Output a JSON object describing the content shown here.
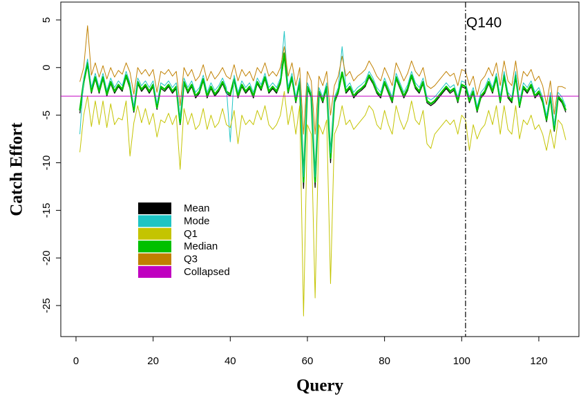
{
  "chart_data": {
    "type": "line",
    "xlabel": "Query",
    "ylabel": "Catch Effort",
    "xlim": [
      -3.94,
      130.4
    ],
    "ylim": [
      -28.26,
      6.88
    ],
    "xticks": [
      0,
      20,
      40,
      60,
      80,
      100,
      120
    ],
    "yticks": [
      5,
      0,
      -5,
      -10,
      -15,
      -20,
      -25
    ],
    "x": [
      1,
      2,
      3,
      4,
      5,
      6,
      7,
      8,
      9,
      10,
      11,
      12,
      13,
      14,
      15,
      16,
      17,
      18,
      19,
      20,
      21,
      22,
      23,
      24,
      25,
      26,
      27,
      28,
      29,
      30,
      31,
      32,
      33,
      34,
      35,
      36,
      37,
      38,
      39,
      40,
      41,
      42,
      43,
      44,
      45,
      46,
      47,
      48,
      49,
      50,
      51,
      52,
      53,
      54,
      55,
      56,
      57,
      58,
      59,
      60,
      61,
      62,
      63,
      64,
      65,
      66,
      67,
      68,
      69,
      70,
      71,
      72,
      73,
      74,
      75,
      76,
      77,
      78,
      79,
      80,
      81,
      82,
      83,
      84,
      85,
      86,
      87,
      88,
      89,
      90,
      91,
      92,
      93,
      94,
      95,
      96,
      97,
      98,
      99,
      100,
      101,
      102,
      103,
      104,
      105,
      106,
      107,
      108,
      109,
      110,
      111,
      112,
      113,
      114,
      115,
      116,
      117,
      118,
      119,
      120,
      121,
      122,
      123,
      124,
      125,
      126,
      127
    ],
    "series": [
      {
        "name": "Mean",
        "color": "#000000",
        "line_width": 1.2,
        "values": [
          -4.8,
          -1.7,
          0.3,
          -2.7,
          -1.2,
          -2.7,
          -1.2,
          -3,
          -1.7,
          -2.7,
          -2,
          -2.5,
          -1,
          -2.2,
          -4.7,
          -1.7,
          -2.5,
          -2,
          -2.7,
          -2,
          -4.4,
          -2.2,
          -2.5,
          -2,
          -2.7,
          -2.2,
          -6,
          -1.7,
          -2.7,
          -2,
          -3.2,
          -2.7,
          -1.4,
          -3.2,
          -2.2,
          -3,
          -2.5,
          -1.7,
          -2.7,
          -3,
          -1.4,
          -3.2,
          -2,
          -2.7,
          -2.2,
          -3.2,
          -1.7,
          -2.4,
          -1.2,
          -2.7,
          -2.2,
          -2.7,
          -1.7,
          1.2,
          -2.7,
          -1.2,
          -3.7,
          -1.7,
          -12.7,
          -2.2,
          -3.2,
          -12.6,
          -2.7,
          -3.7,
          -2.2,
          -10,
          -3.7,
          -2.7,
          -0.7,
          -2.7,
          -2.2,
          -3.2,
          -2.7,
          -2.4,
          -2,
          -1,
          -1.7,
          -2.7,
          -3.2,
          -1.7,
          -2.7,
          -3.7,
          -1.2,
          -2.2,
          -3.2,
          -2.4,
          -1,
          -2.2,
          -2.7,
          -1.7,
          -3.7,
          -4,
          -3.7,
          -3.2,
          -2.7,
          -2.2,
          -2.7,
          -2.4,
          -3.7,
          -2,
          -2.2,
          -3.7,
          -2.7,
          -4.7,
          -3.2,
          -2.7,
          -1.7,
          -2.7,
          -1.2,
          -3.7,
          -1,
          -3.2,
          -3.7,
          -1,
          -4.2,
          -2.2,
          -2.7,
          -2,
          -3.2,
          -2.7,
          -3.7,
          -5.7,
          -3.2,
          -6.7,
          -3.2,
          -3.7,
          -4.7
        ]
      },
      {
        "name": "Mode",
        "color": "#1ec4c4",
        "line_width": 1,
        "values": [
          -7,
          -1.1,
          0.9,
          -2.1,
          -0.6,
          -2.1,
          -0.6,
          -2.4,
          -1.1,
          -2.1,
          -1.4,
          -1.9,
          -0.4,
          -1.6,
          -4.1,
          -1.1,
          -1.9,
          -1.4,
          -2.1,
          -1.4,
          -3.8,
          -1.6,
          -1.9,
          -1.4,
          -2.1,
          -1.6,
          -5.4,
          -1.1,
          -2.1,
          -1.4,
          -2.6,
          -2.1,
          -0.8,
          -2.6,
          -1.6,
          -2.4,
          -1.9,
          -1.1,
          -2.1,
          -7.8,
          -0.8,
          -2.6,
          -1.4,
          -2.1,
          -1.6,
          -2.6,
          -1.1,
          -1.8,
          -0.6,
          -2.1,
          -1.6,
          -2.1,
          -1.1,
          3.8,
          -2.1,
          -0.6,
          -3.1,
          -1.1,
          -11.5,
          -1.6,
          -2.6,
          -11.5,
          -2.1,
          -3.1,
          -1.6,
          -9,
          -3.1,
          -2.1,
          2.2,
          -2.1,
          -1.6,
          -2.6,
          -2.1,
          -1.8,
          -1.4,
          -0.4,
          -1.1,
          -2.1,
          -2.6,
          -1.1,
          -2.1,
          -3.1,
          -0.6,
          -1.6,
          -2.6,
          -1.8,
          -0.4,
          -1.6,
          -2.1,
          -1.1,
          -3.1,
          -3.4,
          -3.1,
          -2.6,
          -2.1,
          -1.6,
          -2.1,
          -1.8,
          -3.1,
          -1.4,
          -1.6,
          -3.1,
          -2.1,
          -4.1,
          -2.6,
          -2.1,
          -1.1,
          -2.1,
          -0.6,
          -3.1,
          -0.4,
          -2.6,
          -3.1,
          -0.4,
          -3.6,
          -1.6,
          -2.1,
          -1.4,
          -2.6,
          -2.1,
          -3.1,
          -5.1,
          -2.6,
          -6.1,
          -2.6,
          -3.1,
          -4.1
        ]
      },
      {
        "name": "Q1",
        "color": "#c4c400",
        "line_width": 1,
        "values": [
          -8.9,
          -5,
          -3,
          -6.2,
          -3.5,
          -6,
          -3.5,
          -6.3,
          -3.8,
          -6,
          -5.3,
          -5.5,
          -3.5,
          -9.3,
          -5.8,
          -4,
          -5.8,
          -4.3,
          -6,
          -4.8,
          -7.3,
          -5.5,
          -5.8,
          -4.8,
          -6,
          -5,
          -10.7,
          -4.3,
          -6,
          -4.8,
          -6.5,
          -6,
          -4.3,
          -6.5,
          -5,
          -6.3,
          -5.8,
          -4.3,
          -6,
          -6.3,
          -4.5,
          -8,
          -5,
          -6,
          -5.5,
          -6,
          -4.5,
          -5.5,
          -4,
          -6,
          -6.5,
          -6,
          -5,
          -2.5,
          -6,
          -4,
          -7,
          -4,
          -26.1,
          -6,
          -7,
          -24.2,
          -6,
          -7,
          -5.5,
          -22.7,
          -7,
          -6,
          -4,
          -6,
          -5.5,
          -6.5,
          -6,
          -5.5,
          -5,
          -4,
          -4.5,
          -6,
          -6.5,
          -4.5,
          -6,
          -7,
          -4,
          -5.5,
          -6.5,
          -5.5,
          -3.5,
          -5.5,
          -6,
          -4.5,
          -8,
          -8.5,
          -7,
          -6.5,
          -6,
          -5.5,
          -6,
          -5.5,
          -7,
          -5,
          -5.5,
          -8.7,
          -6,
          -7.5,
          -6.5,
          -6,
          -4.5,
          -6,
          -4,
          -7,
          -4,
          -6.5,
          -7,
          -4,
          -7.5,
          -5.5,
          -6,
          -5,
          -6.5,
          -6,
          -7,
          -8.7,
          -6.5,
          -8.5,
          -5.5,
          -6,
          -7.6
        ]
      },
      {
        "name": "Median",
        "color": "#00c000",
        "line_width": 2.5,
        "values": [
          -4.5,
          -1.5,
          0.5,
          -2.5,
          -1,
          -2.5,
          -1,
          -2.8,
          -1.5,
          -2.5,
          -1.8,
          -2.3,
          -0.8,
          -2,
          -4.5,
          -1.5,
          -2.3,
          -1.8,
          -2.5,
          -1.8,
          -4.2,
          -2,
          -2.3,
          -1.8,
          -2.5,
          -2,
          -5.8,
          -1.5,
          -2.5,
          -1.8,
          -3,
          -2.5,
          -1.2,
          -3,
          -2,
          -2.8,
          -2.3,
          -1.5,
          -2.5,
          -2.8,
          -1.2,
          -3,
          -1.8,
          -2.5,
          -2,
          -3,
          -1.5,
          -2.2,
          -1,
          -2.5,
          -2,
          -2.5,
          -1.5,
          1.5,
          -2.5,
          -1,
          -3.5,
          -1.5,
          -12,
          -2,
          -3,
          -12,
          -2.5,
          -3.5,
          -2,
          -9.5,
          -3.5,
          -2.5,
          -0.5,
          -2.5,
          -2,
          -3,
          -2.5,
          -2.2,
          -1.8,
          -0.8,
          -1.5,
          -2.5,
          -3,
          -1.5,
          -2.5,
          -3.5,
          -1,
          -2,
          -3,
          -2.2,
          -0.8,
          -2,
          -2.5,
          -1.5,
          -3.5,
          -3.8,
          -3.5,
          -3,
          -2.5,
          -2,
          -2.5,
          -2.2,
          -3.5,
          -1.8,
          -2,
          -3.5,
          -2.5,
          -4.5,
          -3,
          -2.5,
          -1.5,
          -2.5,
          -1,
          -3.5,
          -0.8,
          -3,
          -3.5,
          -0.8,
          -4,
          -2,
          -2.5,
          -1.8,
          -3,
          -2.5,
          -3.5,
          -5.5,
          -3,
          -6.5,
          -3,
          -3.5,
          -4.5
        ]
      },
      {
        "name": "Q3",
        "color": "#c08000",
        "line_width": 1,
        "values": [
          -1.5,
          0,
          4.4,
          -0.8,
          0.5,
          -1,
          0.2,
          -1.2,
          0,
          -1,
          -0.3,
          -0.7,
          0.5,
          -0.5,
          -2.8,
          0,
          -0.7,
          -0.2,
          -0.9,
          -0.2,
          -2.6,
          -0.4,
          -0.7,
          -0.2,
          -0.9,
          -0.4,
          -4,
          0,
          -0.9,
          -0.2,
          -1.4,
          -0.9,
          0.3,
          -1.4,
          -0.4,
          -1.2,
          -0.7,
          0,
          -0.9,
          -1.2,
          0.3,
          -1.4,
          -0.2,
          -0.9,
          -0.4,
          -1.4,
          0,
          -0.6,
          0.5,
          -0.9,
          -0.4,
          -0.9,
          0,
          2.2,
          -0.9,
          0.5,
          -1.9,
          0,
          -7,
          -0.4,
          -1.4,
          -7,
          -0.9,
          -1.9,
          -0.4,
          -5,
          -1.9,
          -0.9,
          1.2,
          -0.9,
          -0.4,
          -1.4,
          -0.9,
          -0.6,
          -0.2,
          0.7,
          0,
          -0.9,
          -1.4,
          0,
          -0.9,
          -1.9,
          0.5,
          -0.4,
          -1.4,
          -0.6,
          0.7,
          -0.4,
          -0.9,
          0,
          -1.9,
          -2.2,
          -1.9,
          -1.4,
          -0.9,
          -0.4,
          -0.9,
          -0.6,
          -1.9,
          -0.2,
          -0.4,
          -1.9,
          -0.9,
          -2.9,
          -1.4,
          -0.9,
          0,
          -0.9,
          0.5,
          -1.9,
          0.7,
          -1.4,
          -1.9,
          0.7,
          -2.4,
          -0.4,
          -0.9,
          -0.2,
          -1.4,
          -0.9,
          -1.9,
          -3.9,
          -1.4,
          -4.9,
          -2,
          -2,
          -2.2
        ]
      },
      {
        "name": "Collapsed",
        "color": "#c000c0",
        "line_width": 1,
        "value": -3
      }
    ],
    "vline": {
      "x": 101,
      "label": "Q140"
    }
  }
}
